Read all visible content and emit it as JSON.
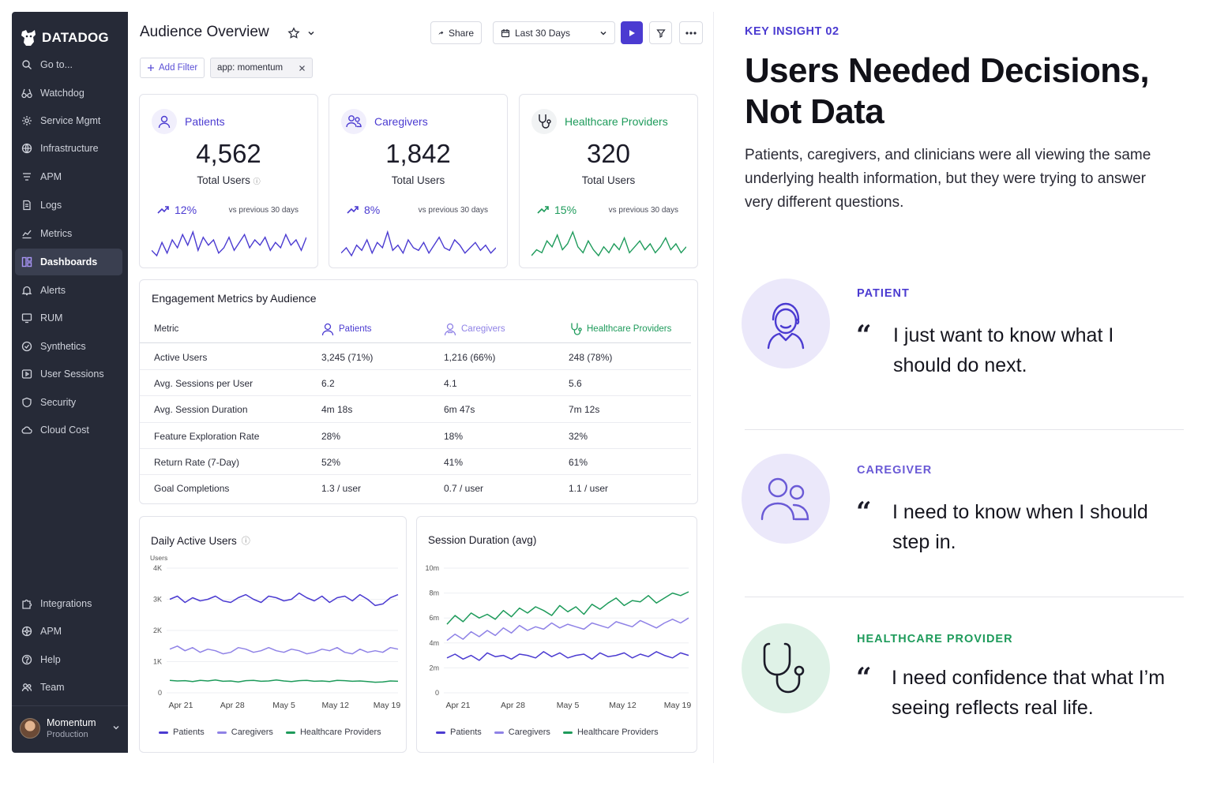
{
  "brand": {
    "name": "DATADOG"
  },
  "sidebar": {
    "items": [
      {
        "label": "Go to...",
        "icon": "search-icon"
      },
      {
        "label": "Watchdog",
        "icon": "binoculars-icon"
      },
      {
        "label": "Service Mgmt",
        "icon": "gear-icon"
      },
      {
        "label": "Infrastructure",
        "icon": "globe-icon"
      },
      {
        "label": "APM",
        "icon": "layers-icon"
      },
      {
        "label": "Logs",
        "icon": "document-icon"
      },
      {
        "label": "Metrics",
        "icon": "line-chart-icon"
      },
      {
        "label": "Dashboards",
        "icon": "dashboard-icon"
      },
      {
        "label": "Alerts",
        "icon": "bell-icon"
      },
      {
        "label": "RUM",
        "icon": "monitor-icon"
      },
      {
        "label": "Synthetics",
        "icon": "check-circle-icon"
      },
      {
        "label": "User Sessions",
        "icon": "video-icon"
      },
      {
        "label": "Security",
        "icon": "shield-icon"
      },
      {
        "label": "Cloud Cost",
        "icon": "cloud-icon"
      }
    ],
    "bottom_items": [
      {
        "label": "Integrations",
        "icon": "puzzle-icon"
      },
      {
        "label": "APM",
        "icon": "network-icon"
      },
      {
        "label": "Help",
        "icon": "help-icon"
      },
      {
        "label": "Team",
        "icon": "team-icon"
      }
    ],
    "user": {
      "name": "Momentum",
      "org": "Production"
    }
  },
  "header": {
    "title": "Audience Overview",
    "share_label": "Share",
    "timeframe": "Last 30 Days",
    "add_filter_label": "Add Filter",
    "filter_chip": "app: momentum"
  },
  "kpis": [
    {
      "name": "Patients",
      "value": "4,562",
      "sub": "Total Users",
      "trend": "12%",
      "vs": "vs previous 30 days",
      "color": "#4b3bd1",
      "spark": [
        5,
        3,
        8,
        4,
        9,
        6,
        11,
        7,
        12,
        5,
        10,
        7,
        9,
        4,
        6,
        10,
        5,
        8,
        11,
        6,
        9,
        7,
        10,
        5,
        8,
        6,
        11,
        7,
        9,
        5,
        10
      ]
    },
    {
      "name": "Caregivers",
      "value": "1,842",
      "sub": "Total Users",
      "trend": "8%",
      "vs": "vs previous 30 days",
      "color": "#4b3bd1",
      "spark": [
        4,
        6,
        3,
        7,
        5,
        9,
        4,
        8,
        6,
        12,
        5,
        7,
        4,
        9,
        6,
        5,
        8,
        4,
        7,
        10,
        6,
        5,
        9,
        7,
        4,
        6,
        8,
        5,
        7,
        4,
        6
      ]
    },
    {
      "name": "Healthcare Providers",
      "value": "320",
      "sub": "Total Users",
      "trend": "15%",
      "vs": "vs previous 30 days",
      "color": "#1e9b5b",
      "spark": [
        4,
        6,
        5,
        9,
        7,
        11,
        6,
        8,
        12,
        7,
        5,
        9,
        6,
        4,
        7,
        5,
        8,
        6,
        10,
        5,
        7,
        9,
        6,
        8,
        5,
        7,
        10,
        6,
        8,
        5,
        7
      ]
    }
  ],
  "engagement": {
    "title": "Engagement Metrics by Audience",
    "headers": [
      "Metric",
      "Patients",
      "Caregivers",
      "Healthcare Providers"
    ],
    "rows": [
      [
        "Active Users",
        "3,245 (71%)",
        "1,216 (66%)",
        "248 (78%)"
      ],
      [
        "Avg. Sessions per User",
        "6.2",
        "4.1",
        "5.6"
      ],
      [
        "Avg. Session Duration",
        "4m 18s",
        "6m 47s",
        "7m 12s"
      ],
      [
        "Feature Exploration Rate",
        "28%",
        "18%",
        "32%"
      ],
      [
        "Return Rate (7-Day)",
        "52%",
        "41%",
        "61%"
      ],
      [
        "Goal Completions",
        "1.3 / user",
        "0.7 / user",
        "1.1 / user"
      ]
    ]
  },
  "colors": {
    "patients": "#4b3bd1",
    "caregivers": "#8f82e6",
    "providers": "#1e9b5b",
    "accent": "#4b3bd1"
  },
  "chart_data": [
    {
      "type": "line",
      "title": "Daily Active Users",
      "ylabel": "Users",
      "ylim": [
        0,
        4000
      ],
      "yticks": [
        "0",
        "1K",
        "2K",
        "3K",
        "4K"
      ],
      "xticks": [
        "Apr 21",
        "Apr 28",
        "May 5",
        "May 12",
        "May 19"
      ],
      "series": [
        {
          "name": "Patients",
          "values": [
            3000,
            3100,
            2900,
            3050,
            2950,
            3000,
            3100,
            2950,
            2900,
            3050,
            3150,
            3000,
            2900,
            3100,
            3050,
            2950,
            3000,
            3200,
            3050,
            2950,
            3100,
            2900,
            3050,
            3100,
            2950,
            3150,
            3000,
            2800,
            2850,
            3050,
            3150
          ]
        },
        {
          "name": "Caregivers",
          "values": [
            1400,
            1500,
            1350,
            1450,
            1300,
            1400,
            1350,
            1250,
            1300,
            1450,
            1400,
            1300,
            1350,
            1450,
            1350,
            1300,
            1400,
            1350,
            1250,
            1300,
            1400,
            1350,
            1450,
            1300,
            1250,
            1400,
            1300,
            1350,
            1300,
            1450,
            1400
          ]
        },
        {
          "name": "Healthcare Providers",
          "values": [
            400,
            380,
            390,
            360,
            400,
            380,
            410,
            370,
            380,
            350,
            390,
            400,
            370,
            380,
            410,
            380,
            360,
            390,
            400,
            370,
            380,
            360,
            400,
            390,
            370,
            380,
            360,
            340,
            350,
            380,
            370
          ]
        }
      ]
    },
    {
      "type": "line",
      "title": "Session Duration (avg)",
      "ylim": [
        0,
        10
      ],
      "yticks": [
        "0",
        "2m",
        "4m",
        "6m",
        "8m",
        "10m"
      ],
      "xticks": [
        "Apr 21",
        "Apr 28",
        "May 5",
        "May 12",
        "May 19"
      ],
      "series": [
        {
          "name": "Patients",
          "values": [
            2.8,
            3.1,
            2.7,
            3.0,
            2.6,
            3.2,
            2.9,
            3.0,
            2.7,
            3.1,
            3.0,
            2.8,
            3.3,
            2.9,
            3.2,
            2.8,
            3.0,
            3.1,
            2.7,
            3.2,
            2.9,
            3.0,
            3.2,
            2.8,
            3.1,
            2.9,
            3.3,
            3.0,
            2.8,
            3.2,
            3.0
          ]
        },
        {
          "name": "Caregivers",
          "values": [
            4.2,
            4.7,
            4.3,
            4.9,
            4.5,
            5.0,
            4.6,
            5.2,
            4.8,
            5.4,
            5.0,
            5.3,
            5.1,
            5.6,
            5.2,
            5.5,
            5.3,
            5.1,
            5.6,
            5.4,
            5.2,
            5.7,
            5.5,
            5.3,
            5.8,
            5.5,
            5.2,
            5.6,
            5.9,
            5.6,
            6.0
          ]
        },
        {
          "name": "Healthcare Providers",
          "values": [
            5.5,
            6.2,
            5.7,
            6.4,
            6.0,
            6.3,
            5.9,
            6.6,
            6.1,
            6.8,
            6.4,
            6.9,
            6.6,
            6.2,
            7.0,
            6.5,
            6.9,
            6.3,
            7.1,
            6.7,
            7.2,
            7.6,
            7.0,
            7.4,
            7.3,
            7.8,
            7.2,
            7.6,
            8.0,
            7.8,
            8.1
          ]
        }
      ]
    }
  ],
  "insight": {
    "tag": "KEY INSIGHT 02",
    "title": "Users Needed Decisions, Not Data",
    "body": "Patients, caregivers, and clinicians were all viewing the same underlying health information, but they were trying to answer very different questions.",
    "personas": [
      {
        "label": "PATIENT",
        "quote": "I just want to know what I should do next.",
        "color": "#4b3bd1",
        "bg": "#ebe8fa",
        "icon": "patient-icon"
      },
      {
        "label": "CAREGIVER",
        "quote": "I need to know when I should step in.",
        "color": "#6a5ad6",
        "bg": "#ebe8fa",
        "icon": "caregiver-icon"
      },
      {
        "label": "HEALTHCARE PROVIDER",
        "quote": "I need confidence that what I’m seeing reflects real life.",
        "color": "#1e9b5b",
        "bg": "#dff2e7",
        "icon": "stethoscope-icon"
      }
    ],
    "quote_mark": "“"
  }
}
